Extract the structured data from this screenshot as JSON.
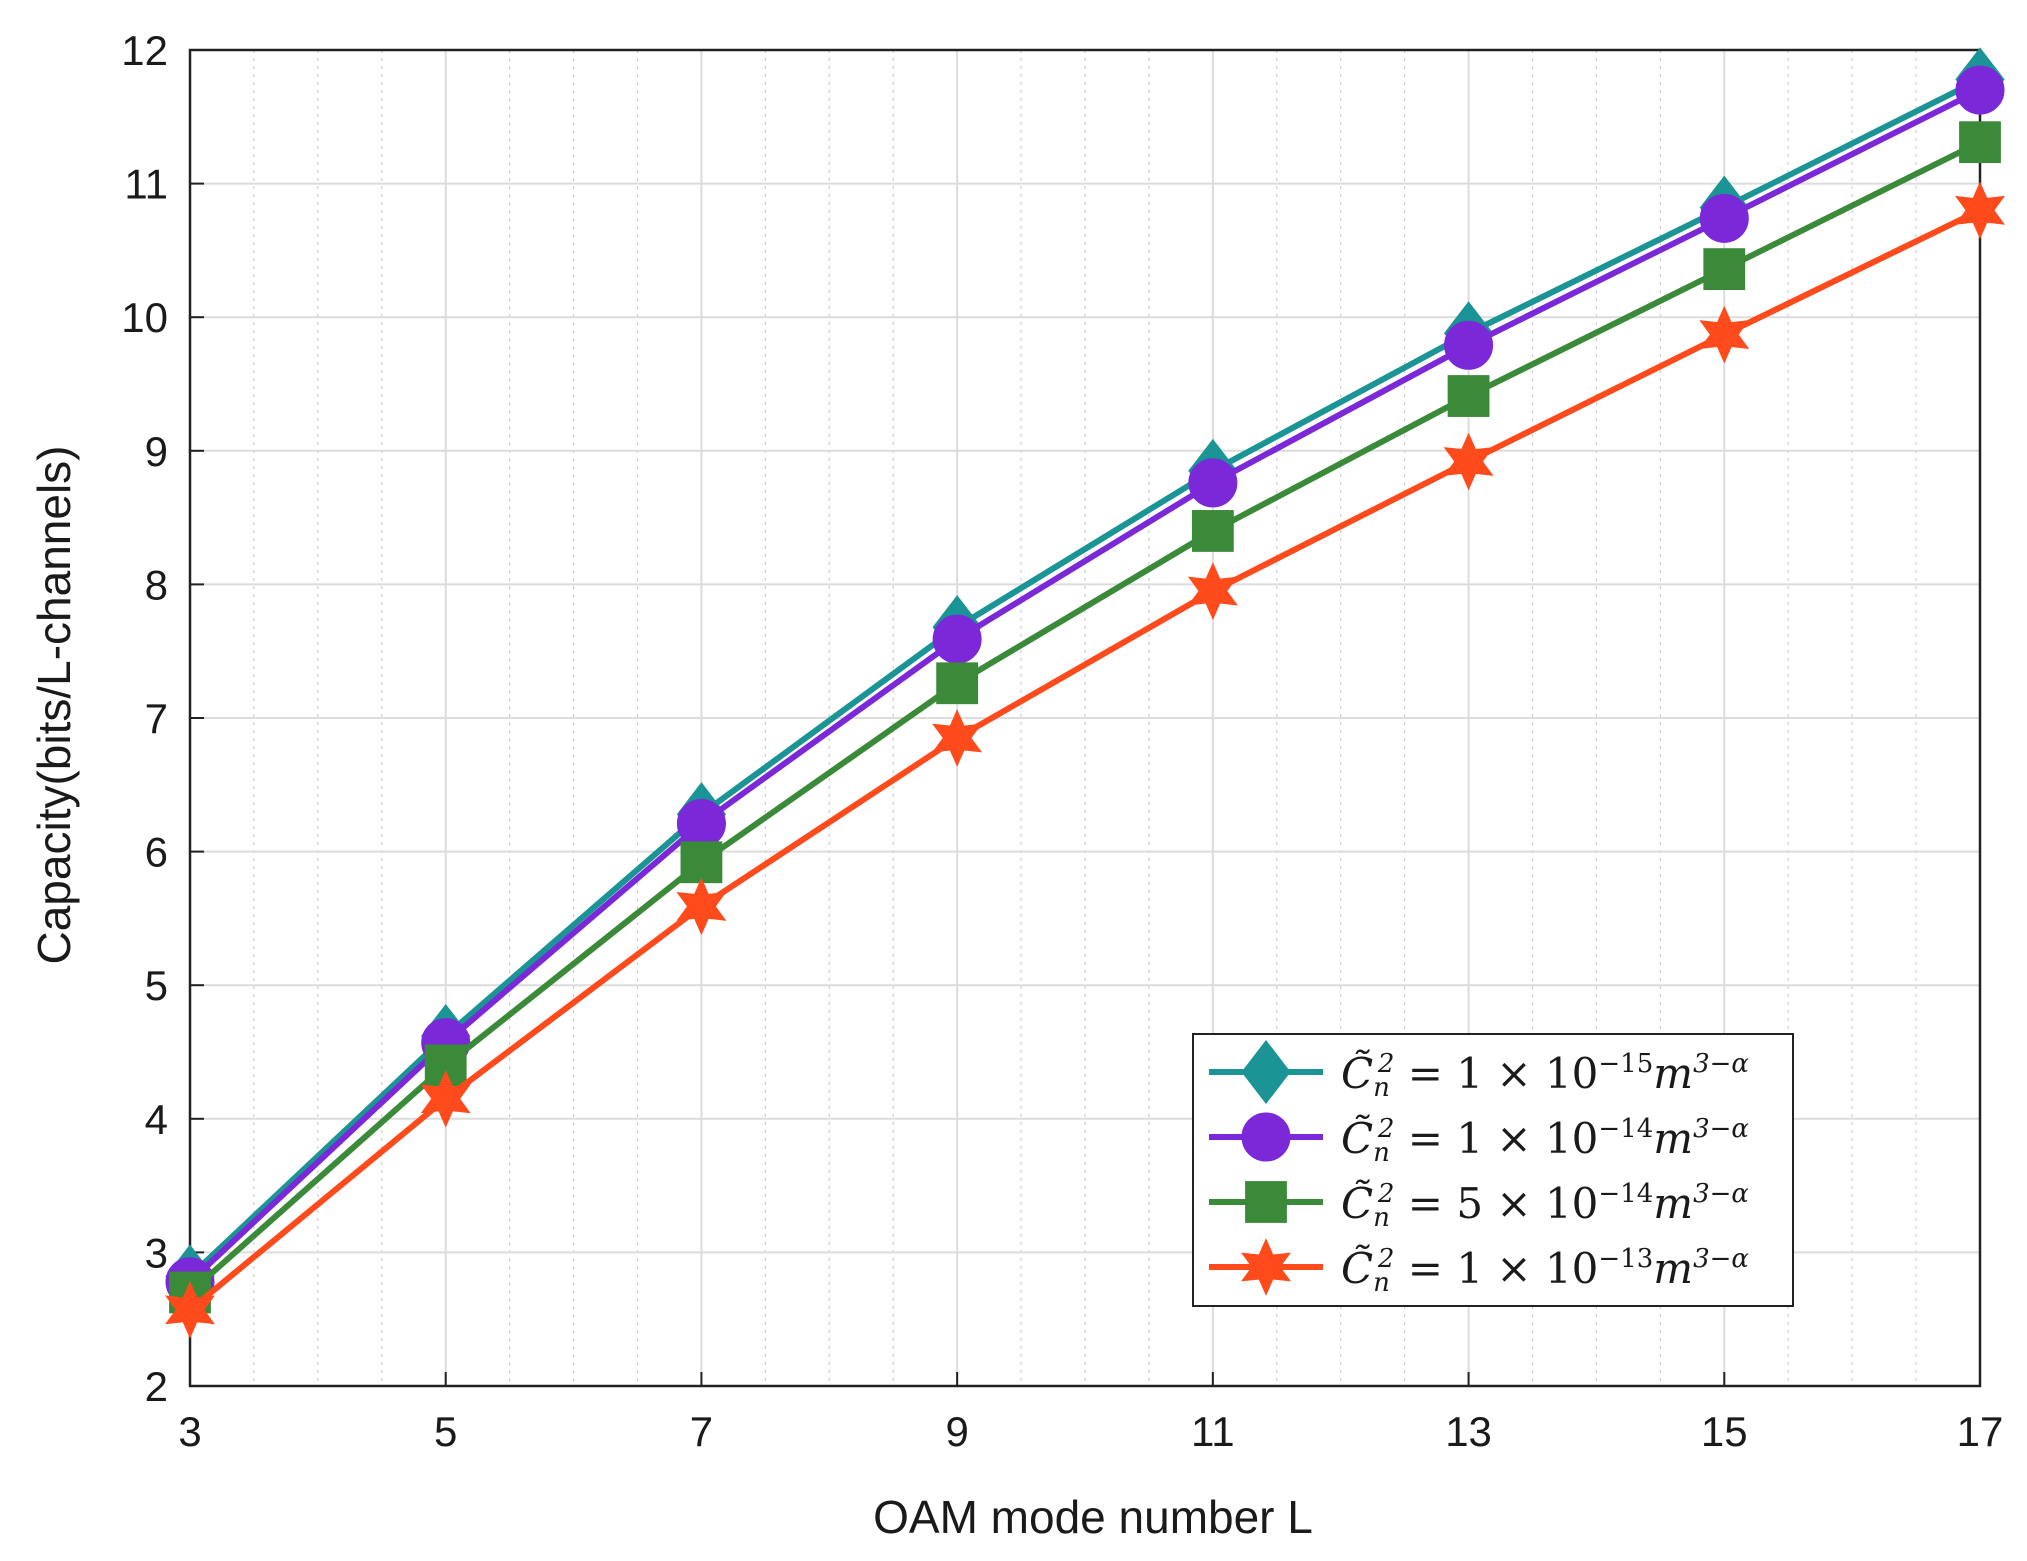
{
  "chart_data": {
    "type": "line",
    "title": "",
    "xlabel": "OAM mode number L",
    "ylabel": "Capacity(bits/L-channels)",
    "x": [
      3,
      5,
      7,
      9,
      11,
      13,
      15,
      17
    ],
    "xlim": [
      3,
      17
    ],
    "ylim": [
      2,
      12
    ],
    "xticks": [
      3,
      5,
      7,
      9,
      11,
      13,
      15,
      17
    ],
    "yticks": [
      2,
      3,
      4,
      5,
      6,
      7,
      8,
      9,
      10,
      11,
      12
    ],
    "grid": "major and minor",
    "legend_position": "bottom-right",
    "series": [
      {
        "name": "C̃n² = 1 × 10⁻¹⁵ m³⁻ᵅ",
        "legend": {
          "lhs": "C̃",
          "sub": "n",
          "sup": "2",
          "coef": "= 1 × 10",
          "exp": "−15",
          "unit": "m",
          "unit_exp": "3−α"
        },
        "color": "#1a9494",
        "marker": "diamond",
        "values": [
          2.82,
          4.62,
          6.28,
          7.68,
          8.85,
          9.88,
          10.82,
          11.78
        ]
      },
      {
        "name": "C̃n² = 1 × 10⁻¹⁴ m³⁻ᵅ",
        "legend": {
          "lhs": "C̃",
          "sub": "n",
          "sup": "2",
          "coef": "= 1 × 10",
          "exp": "−14",
          "unit": "m",
          "unit_exp": "3−α"
        },
        "color": "#7b28d8",
        "marker": "circle",
        "values": [
          2.78,
          4.57,
          6.21,
          7.59,
          8.76,
          9.79,
          10.74,
          11.7
        ]
      },
      {
        "name": "C̃n² = 5 × 10⁻¹⁴ m³⁻ᵅ",
        "legend": {
          "lhs": "C̃",
          "sub": "n",
          "sup": "2",
          "coef": "= 5 × 10",
          "exp": "−14",
          "unit": "m",
          "unit_exp": "3−α"
        },
        "color": "#3a8a3a",
        "marker": "square",
        "values": [
          2.7,
          4.4,
          5.92,
          7.26,
          8.4,
          9.41,
          10.36,
          11.31
        ]
      },
      {
        "name": "C̃n² = 1 × 10⁻¹³ m³⁻ᵅ",
        "legend": {
          "lhs": "C̃",
          "sub": "n",
          "sup": "2",
          "coef": "= 1 × 10",
          "exp": "−13",
          "unit": "m",
          "unit_exp": "3−α"
        },
        "color": "#ff4a1c",
        "marker": "star",
        "values": [
          2.57,
          4.15,
          5.59,
          6.85,
          7.95,
          8.92,
          9.87,
          10.8
        ]
      }
    ]
  }
}
